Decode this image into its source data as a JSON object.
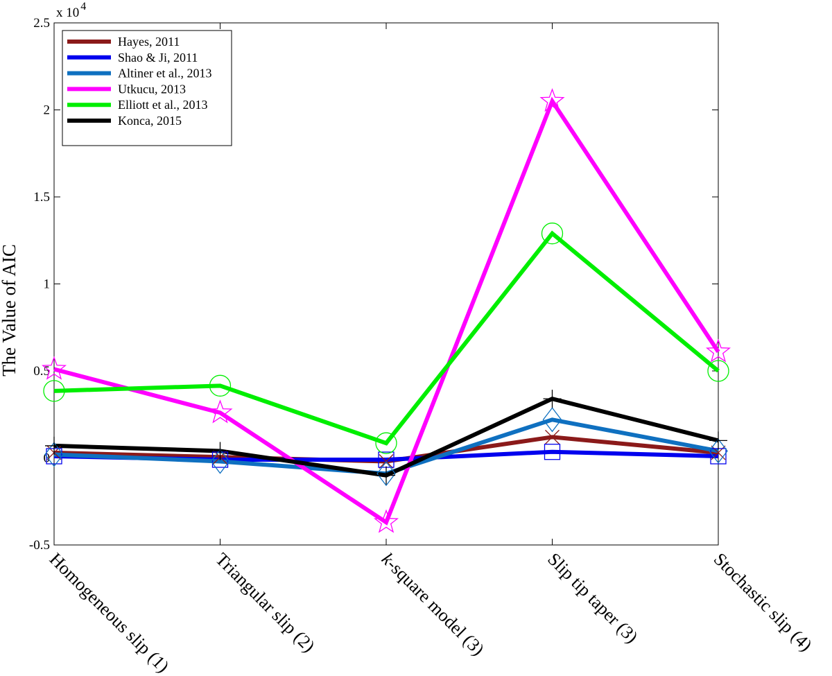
{
  "chart_data": {
    "type": "line",
    "categories": [
      "Homogeneous slip (1)",
      "Triangular slip (2)",
      "k-square model (3)",
      "Slip tip taper (3)",
      "Stochastic slip (4)"
    ],
    "category_italic_prefix": "k",
    "ylabel": "The Value of AIC",
    "y_multiplier": "x 10",
    "y_multiplier_exponent": "4",
    "ylim": [
      -5000,
      25000
    ],
    "yticks": [
      {
        "value": -5000,
        "label": "-0.5"
      },
      {
        "value": 0,
        "label": "0"
      },
      {
        "value": 5000,
        "label": "0.5"
      },
      {
        "value": 10000,
        "label": "1"
      },
      {
        "value": 15000,
        "label": "1.5"
      },
      {
        "value": 20000,
        "label": "2"
      },
      {
        "value": 25000,
        "label": "2.5"
      }
    ],
    "grid": false,
    "legend_position": "top-left",
    "series": [
      {
        "name": "Hayes, 2011",
        "color": "#8b1a1a",
        "marker": "x-mark",
        "values": [
          300,
          50,
          -200,
          1200,
          300
        ]
      },
      {
        "name": "Shao & Ji, 2011",
        "color": "#0000ee",
        "marker": "square",
        "values": [
          100,
          -100,
          -100,
          350,
          100
        ]
      },
      {
        "name": "Altiner et al., 2013",
        "color": "#0f70c0",
        "marker": "diamond",
        "values": [
          200,
          -200,
          -900,
          2200,
          400
        ]
      },
      {
        "name": "Utkucu, 2013",
        "color": "#ff00ff",
        "marker": "star",
        "values": [
          5100,
          2600,
          -3700,
          20500,
          6100
        ]
      },
      {
        "name": "Elliott et al., 2013",
        "color": "#00ee00",
        "marker": "circle",
        "values": [
          3850,
          4150,
          850,
          12900,
          5000
        ]
      },
      {
        "name": "Konca, 2015",
        "color": "#000000",
        "marker": "plus",
        "values": [
          700,
          400,
          -1000,
          3400,
          1000
        ]
      }
    ]
  }
}
